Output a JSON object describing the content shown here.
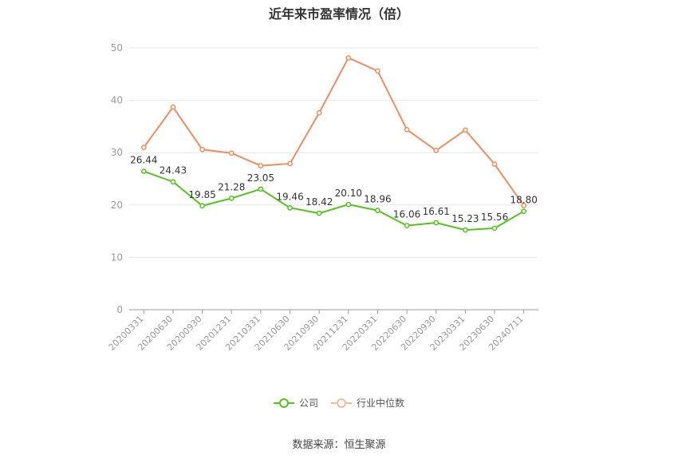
{
  "chart_data": {
    "type": "line",
    "title": "近年来市盈率情况（倍）",
    "categories": [
      "20200331",
      "20200630",
      "20200930",
      "20201231",
      "20210331",
      "20210630",
      "20210930",
      "20211231",
      "20220331",
      "20220630",
      "20220930",
      "20230331",
      "20230630",
      "20240711"
    ],
    "ylim": [
      0,
      50
    ],
    "yticks": [
      0,
      10,
      20,
      30,
      40,
      50
    ],
    "grid": true,
    "legend_position": "bottom",
    "series": [
      {
        "name": "公司",
        "color": "#52c41a",
        "values": [
          26.44,
          24.43,
          19.85,
          21.28,
          23.05,
          19.46,
          18.42,
          20.1,
          18.96,
          16.06,
          16.61,
          15.23,
          15.56,
          18.8
        ],
        "labels": [
          "26.44",
          "24.43",
          "19.85",
          "21.28",
          "23.05",
          "19.46",
          "18.42",
          "20.10",
          "18.96",
          "16.06",
          "16.61",
          "15.23",
          "15.56",
          "18.80"
        ]
      },
      {
        "name": "行业中位数",
        "color": "#f28c5e",
        "values": [
          31.0,
          38.7,
          30.6,
          29.9,
          27.5,
          27.9,
          37.6,
          48.1,
          45.6,
          34.4,
          30.4,
          34.3,
          27.8,
          19.9
        ]
      }
    ]
  },
  "source": "数据来源：恒生聚源"
}
